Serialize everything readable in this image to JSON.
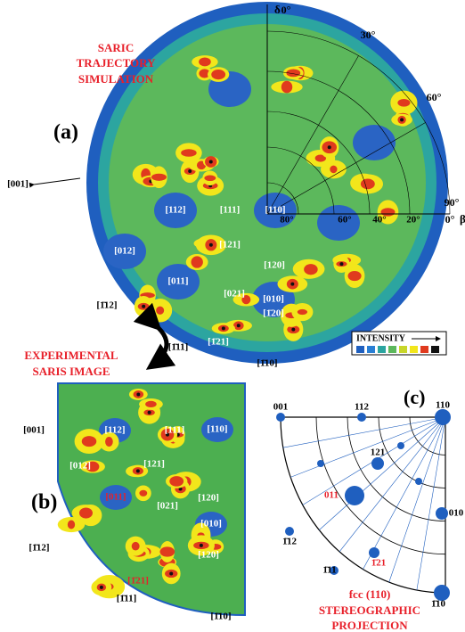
{
  "panel_a": {
    "label": "(a)",
    "title": [
      "SARIC",
      "TRAJECTORY",
      "SIMULATION"
    ],
    "delta": "δ",
    "beta": "β",
    "angles": [
      "0°",
      "30°",
      "60°",
      "90°",
      "0°"
    ],
    "beta_ticks": [
      "80°",
      "60°",
      "40°",
      "20°"
    ],
    "poles": [
      "[112]",
      "[111]",
      "[110]",
      "[012]",
      "[121]",
      "[120]",
      "[011]",
      "[021]",
      "[010]",
      "[1̄20]",
      "[1̄21]"
    ],
    "edge_poles": [
      "[001]",
      "[1̄12]",
      "[1̄11]",
      "[1̄10]"
    ],
    "legend": "INTENSITY"
  },
  "link": [
    "EXPERIMENTAL",
    "SARIS IMAGE"
  ],
  "panel_b": {
    "label": "(b)",
    "poles": [
      "[112]",
      "[111]",
      "[110]",
      "[012]",
      "[121]",
      "[120]",
      "[011]",
      "[021]",
      "[010]",
      "[1̄21]",
      "[120]"
    ],
    "edge_poles": [
      "[001]",
      "[1̄12]",
      "[1̄11]",
      "[1̄10]"
    ]
  },
  "panel_c": {
    "label": "(c)",
    "poles": [
      "001",
      "112",
      "110",
      "121",
      "011",
      "010",
      "1̄12",
      "1̄21",
      "1̄11",
      "1̄10"
    ],
    "caption": [
      "fcc (110)",
      "STEREOGRAPHIC",
      "PROJECTION"
    ]
  }
}
